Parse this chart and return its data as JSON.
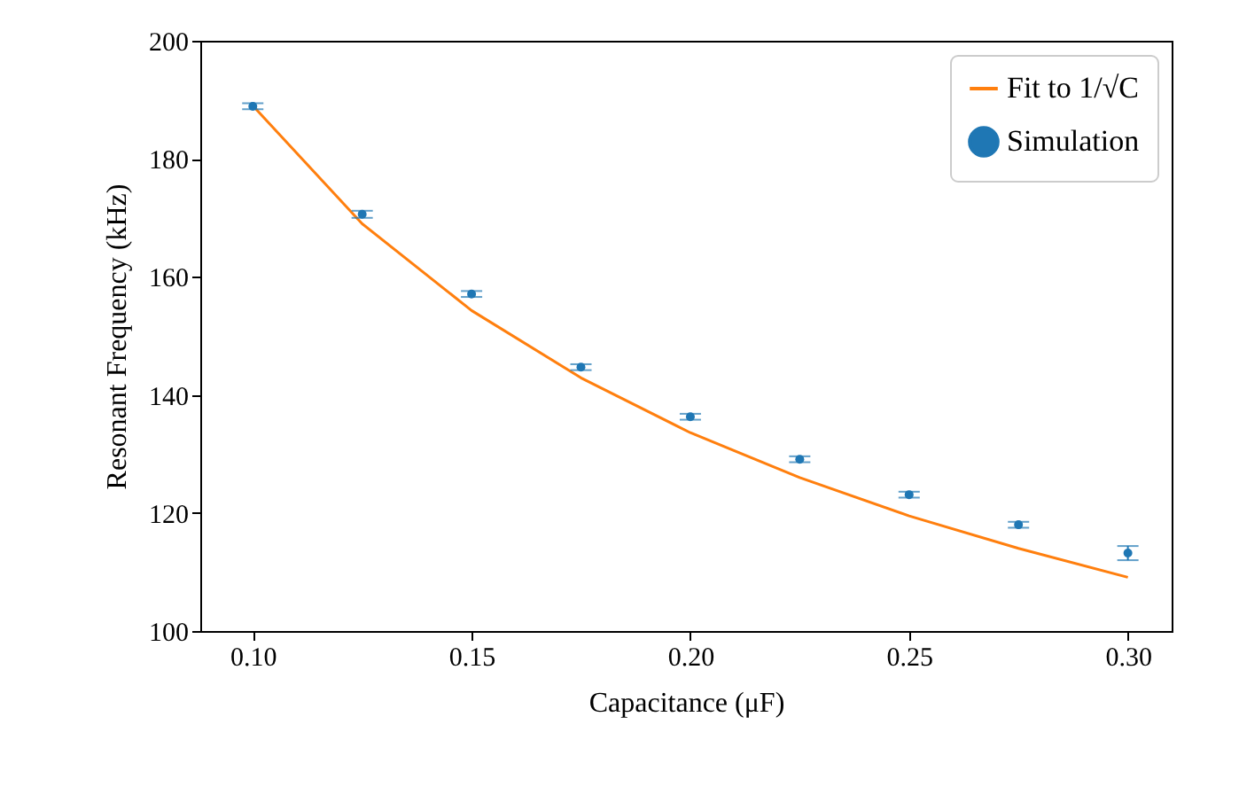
{
  "chart_data": {
    "type": "scatter",
    "xlabel": "Capacitance (μF)",
    "ylabel": "Resonant Frequency (kHz)",
    "x": [
      0.1,
      0.125,
      0.15,
      0.175,
      0.2,
      0.225,
      0.25,
      0.275,
      0.3
    ],
    "series": [
      {
        "name": "Fit to 1/√C",
        "type": "line",
        "color": "#ff7f0e",
        "x": [
          0.1,
          0.125,
          0.15,
          0.175,
          0.2,
          0.225,
          0.25,
          0.275,
          0.3
        ],
        "values": [
          189,
          169,
          154.3,
          142.9,
          133.6,
          126,
          119.5,
          114,
          109.1
        ]
      },
      {
        "name": "Simulation",
        "type": "scatter",
        "color": "#1f77b4",
        "marker": "circle",
        "values": [
          188.9,
          170.6,
          157.1,
          144.7,
          136.3,
          129.1,
          123.1,
          118,
          113.2
        ],
        "errors": [
          0.5,
          0.6,
          0.5,
          0.5,
          0.5,
          0.5,
          0.5,
          0.5,
          1.2
        ]
      }
    ],
    "xlim": [
      0.088,
      0.31
    ],
    "xticks": [
      {
        "value": 0.1,
        "label": "0.10"
      },
      0.15,
      {
        "value": 0.2,
        "label": "0.20"
      },
      0.25,
      {
        "value": 0.3,
        "label": "0.30"
      }
    ],
    "ylim": [
      100,
      200
    ],
    "yticks": [
      100,
      120,
      140,
      160,
      180,
      200
    ],
    "legend": "top right",
    "grid": false
  }
}
